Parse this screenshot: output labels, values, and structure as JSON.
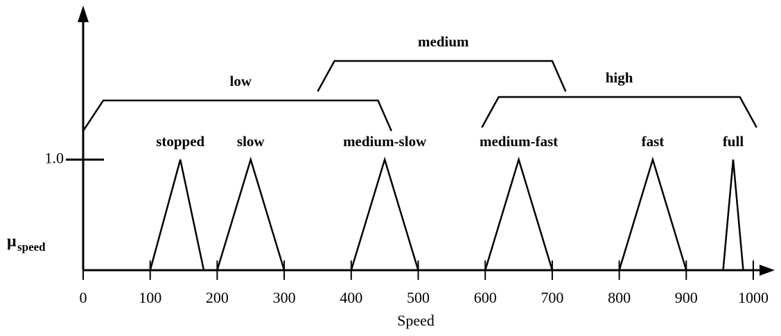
{
  "chart_data": {
    "type": "fuzzy",
    "xlabel": "Speed",
    "ylabel": "μ",
    "ylabel_sub": "speed",
    "xlim": [
      0,
      1000
    ],
    "ylim": [
      0,
      2.33
    ],
    "xticks": [
      0,
      100,
      200,
      300,
      400,
      500,
      600,
      700,
      800,
      900,
      1000
    ],
    "yticks": [
      {
        "value": 1,
        "label": "1.0"
      }
    ],
    "color": "#000000",
    "series": [
      {
        "name": "stopped",
        "x": [
          100,
          145,
          180
        ],
        "values": [
          0,
          1,
          0
        ]
      },
      {
        "name": "slow",
        "x": [
          200,
          250,
          300
        ],
        "values": [
          0,
          1,
          0
        ]
      },
      {
        "name": "medium-slow",
        "x": [
          400,
          450,
          500
        ],
        "values": [
          0,
          1,
          0
        ]
      },
      {
        "name": "medium-fast",
        "x": [
          600,
          650,
          700
        ],
        "values": [
          0,
          1,
          0
        ]
      },
      {
        "name": "fast",
        "x": [
          800,
          850,
          900
        ],
        "values": [
          0,
          1,
          0
        ]
      },
      {
        "name": "full",
        "x": [
          955,
          970,
          985
        ],
        "values": [
          0,
          1,
          0
        ]
      }
    ],
    "ranges": [
      {
        "name": "low",
        "x": [
          0,
          30,
          440,
          460
        ]
      },
      {
        "name": "medium",
        "x": [
          350,
          375,
          700,
          720
        ]
      },
      {
        "name": "high",
        "x": [
          595,
          620,
          980,
          1005
        ]
      }
    ]
  }
}
